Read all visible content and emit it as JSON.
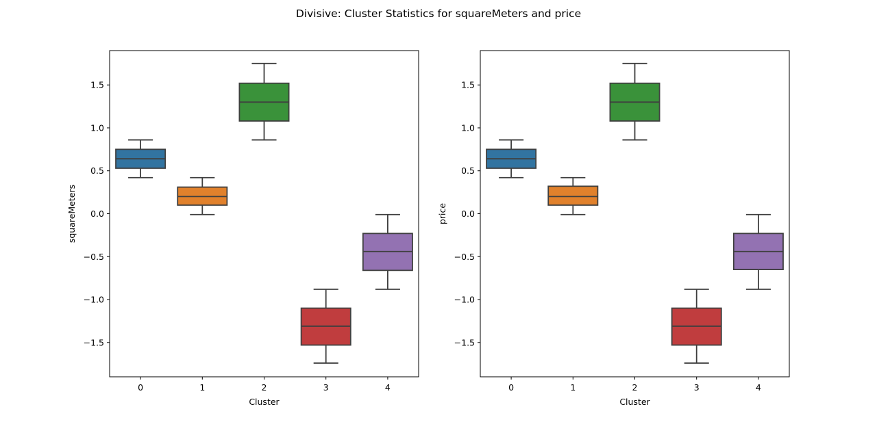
{
  "suptitle": "Divisive: Cluster Statistics for squareMeters and price",
  "chart_data": [
    {
      "type": "box",
      "xlabel": "Cluster",
      "ylabel": "squareMeters",
      "categories": [
        "0",
        "1",
        "2",
        "3",
        "4"
      ],
      "ylim": [
        -1.9,
        1.9
      ],
      "yticks": [
        -1.5,
        -1.0,
        -0.5,
        0.0,
        0.5,
        1.0,
        1.5
      ],
      "ytick_labels": [
        "−1.5",
        "−1.0",
        "−0.5",
        "0.0",
        "0.5",
        "1.0",
        "1.5"
      ],
      "grid": false,
      "boxes": [
        {
          "cluster": "0",
          "whislo": 0.42,
          "q1": 0.53,
          "med": 0.64,
          "q3": 0.75,
          "whishi": 0.86,
          "color": "#3274a1"
        },
        {
          "cluster": "1",
          "whislo": -0.01,
          "q1": 0.1,
          "med": 0.2,
          "q3": 0.31,
          "whishi": 0.42,
          "color": "#e1812c"
        },
        {
          "cluster": "2",
          "whislo": 0.86,
          "q1": 1.08,
          "med": 1.3,
          "q3": 1.52,
          "whishi": 1.75,
          "color": "#3a923a"
        },
        {
          "cluster": "3",
          "whislo": -1.74,
          "q1": -1.53,
          "med": -1.31,
          "q3": -1.1,
          "whishi": -0.88,
          "color": "#c03d3e"
        },
        {
          "cluster": "4",
          "whislo": -0.88,
          "q1": -0.66,
          "med": -0.44,
          "q3": -0.23,
          "whishi": -0.01,
          "color": "#9372b2"
        }
      ]
    },
    {
      "type": "box",
      "xlabel": "Cluster",
      "ylabel": "price",
      "categories": [
        "0",
        "1",
        "2",
        "3",
        "4"
      ],
      "ylim": [
        -1.9,
        1.9
      ],
      "yticks": [
        -1.5,
        -1.0,
        -0.5,
        0.0,
        0.5,
        1.0,
        1.5
      ],
      "ytick_labels": [
        "−1.5",
        "−1.0",
        "−0.5",
        "0.0",
        "0.5",
        "1.0",
        "1.5"
      ],
      "grid": false,
      "boxes": [
        {
          "cluster": "0",
          "whislo": 0.42,
          "q1": 0.53,
          "med": 0.64,
          "q3": 0.75,
          "whishi": 0.86,
          "color": "#3274a1"
        },
        {
          "cluster": "1",
          "whislo": -0.01,
          "q1": 0.1,
          "med": 0.2,
          "q3": 0.32,
          "whishi": 0.42,
          "color": "#e1812c"
        },
        {
          "cluster": "2",
          "whislo": 0.86,
          "q1": 1.08,
          "med": 1.3,
          "q3": 1.52,
          "whishi": 1.75,
          "color": "#3a923a"
        },
        {
          "cluster": "3",
          "whislo": -1.74,
          "q1": -1.53,
          "med": -1.31,
          "q3": -1.1,
          "whishi": -0.88,
          "color": "#c03d3e"
        },
        {
          "cluster": "4",
          "whislo": -0.88,
          "q1": -0.65,
          "med": -0.44,
          "q3": -0.23,
          "whishi": -0.01,
          "color": "#9372b2"
        }
      ]
    }
  ]
}
